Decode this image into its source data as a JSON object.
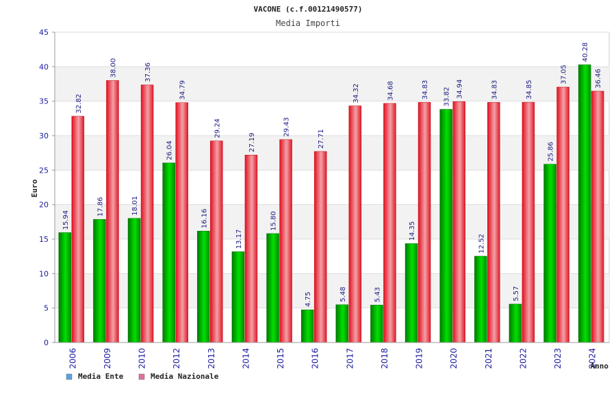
{
  "chart_data": {
    "type": "bar",
    "title": "VACONE (c.f.00121490577)",
    "subtitle": "Media Importi",
    "xlabel": "Anno",
    "ylabel": "Euro",
    "ylim": [
      0,
      45
    ],
    "yticks": [
      0,
      5,
      10,
      15,
      20,
      25,
      30,
      35,
      40,
      45
    ],
    "categories": [
      "2006",
      "2009",
      "2010",
      "2012",
      "2013",
      "2014",
      "2015",
      "2016",
      "2017",
      "2018",
      "2019",
      "2020",
      "2021",
      "2022",
      "2023",
      "2024"
    ],
    "series": [
      {
        "name": "Media Ente",
        "color": "#00b000",
        "legend_color": "#5aa0e6",
        "values": [
          15.94,
          17.86,
          18.01,
          26.04,
          16.16,
          13.17,
          15.8,
          4.75,
          5.48,
          5.43,
          14.35,
          33.82,
          12.52,
          5.57,
          25.86,
          40.28
        ],
        "labels": [
          "15.94",
          "17.86",
          "18.01",
          "26.04",
          "16.16",
          "13.17",
          "15.80",
          "4.75",
          "5.48",
          "5.43",
          "14.35",
          "33.82",
          "12.52",
          "5.57",
          "25.86",
          "40.28"
        ]
      },
      {
        "name": "Media Nazionale",
        "color": "#e8202a",
        "legend_color": "#e070a0",
        "values": [
          32.82,
          38.0,
          37.36,
          34.79,
          29.24,
          27.19,
          29.43,
          27.71,
          34.32,
          34.68,
          34.83,
          34.94,
          34.83,
          34.85,
          37.05,
          36.46
        ],
        "labels": [
          "32.82",
          "38.00",
          "37.36",
          "34.79",
          "29.24",
          "27.19",
          "29.43",
          "27.71",
          "34.32",
          "34.68",
          "34.83",
          "34.94",
          "34.83",
          "34.85",
          "37.05",
          "36.46"
        ]
      }
    ],
    "grid": true,
    "legend_position": "bottom-left"
  }
}
